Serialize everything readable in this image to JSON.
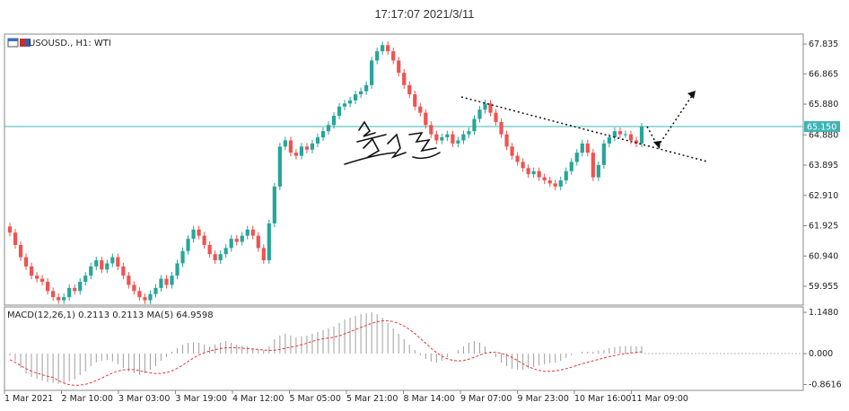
{
  "timestamp": "17:17:07  2021/3/11",
  "chart_data": [
    {
      "type": "candlestick",
      "symbol_label": "USOUSD., H1:  WTI",
      "ylim": [
        59.4,
        68.1
      ],
      "y_ticks": [
        "67.835",
        "66.865",
        "65.880",
        "64.880",
        "63.895",
        "62.910",
        "61.925",
        "60.940",
        "59.955"
      ],
      "current_price": "65.150",
      "x_ticks": [
        "1 Mar 2021",
        "2 Mar 10:00",
        "3 Mar 03:00",
        "3 Mar 19:00",
        "4 Mar 12:00",
        "5 Mar 05:00",
        "5 Mar 21:00",
        "8 Mar 14:00",
        "9 Mar 07:00",
        "9 Mar 23:00",
        "10 Mar 16:00",
        "11 Mar 09:00"
      ],
      "series_close": [
        61.7,
        61.3,
        60.9,
        60.6,
        60.3,
        60.2,
        60.1,
        59.8,
        59.6,
        59.5,
        59.6,
        59.9,
        59.8,
        60.1,
        60.3,
        60.6,
        60.8,
        60.5,
        60.7,
        60.9,
        60.6,
        60.3,
        60.0,
        59.8,
        59.6,
        59.5,
        59.7,
        59.9,
        60.2,
        60.0,
        60.3,
        60.7,
        61.1,
        61.5,
        61.8,
        61.6,
        61.3,
        61.0,
        60.8,
        61.0,
        61.2,
        61.5,
        61.4,
        61.6,
        61.8,
        61.6,
        61.2,
        60.8,
        62.0,
        63.2,
        64.5,
        64.7,
        64.3,
        64.2,
        64.5,
        64.4,
        64.6,
        64.8,
        65.0,
        65.2,
        65.5,
        65.8,
        65.9,
        66.0,
        66.2,
        66.3,
        66.5,
        67.3,
        67.6,
        67.8,
        67.6,
        67.3,
        66.9,
        66.5,
        66.2,
        65.8,
        65.6,
        65.2,
        64.9,
        64.7,
        64.8,
        64.9,
        64.6,
        64.7,
        64.9,
        65.0,
        65.4,
        65.7,
        65.9,
        65.6,
        65.3,
        64.9,
        64.5,
        64.2,
        64.0,
        63.8,
        63.6,
        63.7,
        63.5,
        63.4,
        63.3,
        63.2,
        63.4,
        63.7,
        64.0,
        64.3,
        64.6,
        64.3,
        63.5,
        63.9,
        64.6,
        64.8,
        65.0,
        64.9,
        64.9,
        64.7,
        64.6,
        65.15
      ],
      "annotations": [
        "descending trendline",
        "dotted arrow up",
        "dotted arrow down"
      ],
      "colors": {
        "up": "#26a69a",
        "down": "#ef5350",
        "price_line": "#3fb4b4",
        "price_label": "#3fb4b4"
      }
    },
    {
      "type": "macd",
      "label": "MACD(12,26,1) 0.2113 0.2113 MA(5) 64.9598",
      "ylim": [
        -0.95,
        1.2
      ],
      "y_ticks": [
        "1.1480",
        "0.000",
        "-0.8616"
      ],
      "hist": [
        -0.05,
        -0.2,
        -0.4,
        -0.55,
        -0.65,
        -0.7,
        -0.75,
        -0.8,
        -0.82,
        -0.84,
        -0.82,
        -0.78,
        -0.72,
        -0.6,
        -0.5,
        -0.35,
        -0.25,
        -0.2,
        -0.18,
        -0.22,
        -0.3,
        -0.4,
        -0.5,
        -0.55,
        -0.6,
        -0.55,
        -0.45,
        -0.35,
        -0.2,
        -0.1,
        0.05,
        0.15,
        0.25,
        0.3,
        0.32,
        0.3,
        0.25,
        0.2,
        0.25,
        0.3,
        0.35,
        0.3,
        0.25,
        0.22,
        0.2,
        0.15,
        0.1,
        0.1,
        0.2,
        0.4,
        0.5,
        0.55,
        0.5,
        0.45,
        0.48,
        0.5,
        0.55,
        0.6,
        0.65,
        0.7,
        0.75,
        0.85,
        0.95,
        1.0,
        1.05,
        1.1,
        1.12,
        1.15,
        1.1,
        1.0,
        0.85,
        0.7,
        0.55,
        0.4,
        0.25,
        0.1,
        -0.05,
        -0.15,
        -0.22,
        -0.25,
        -0.2,
        -0.1,
        0.0,
        0.1,
        0.2,
        0.3,
        0.35,
        0.3,
        0.2,
        0.05,
        -0.1,
        -0.25,
        -0.35,
        -0.42,
        -0.45,
        -0.45,
        -0.42,
        -0.38,
        -0.33,
        -0.3,
        -0.27,
        -0.25,
        -0.2,
        -0.12,
        -0.05,
        0.0,
        0.05,
        0.05,
        0.05,
        0.08,
        0.1,
        0.15,
        0.18,
        0.2,
        0.21,
        0.21,
        0.2,
        0.21
      ],
      "signal_color": "#e53935",
      "hist_color": "#9e9e9e"
    }
  ]
}
